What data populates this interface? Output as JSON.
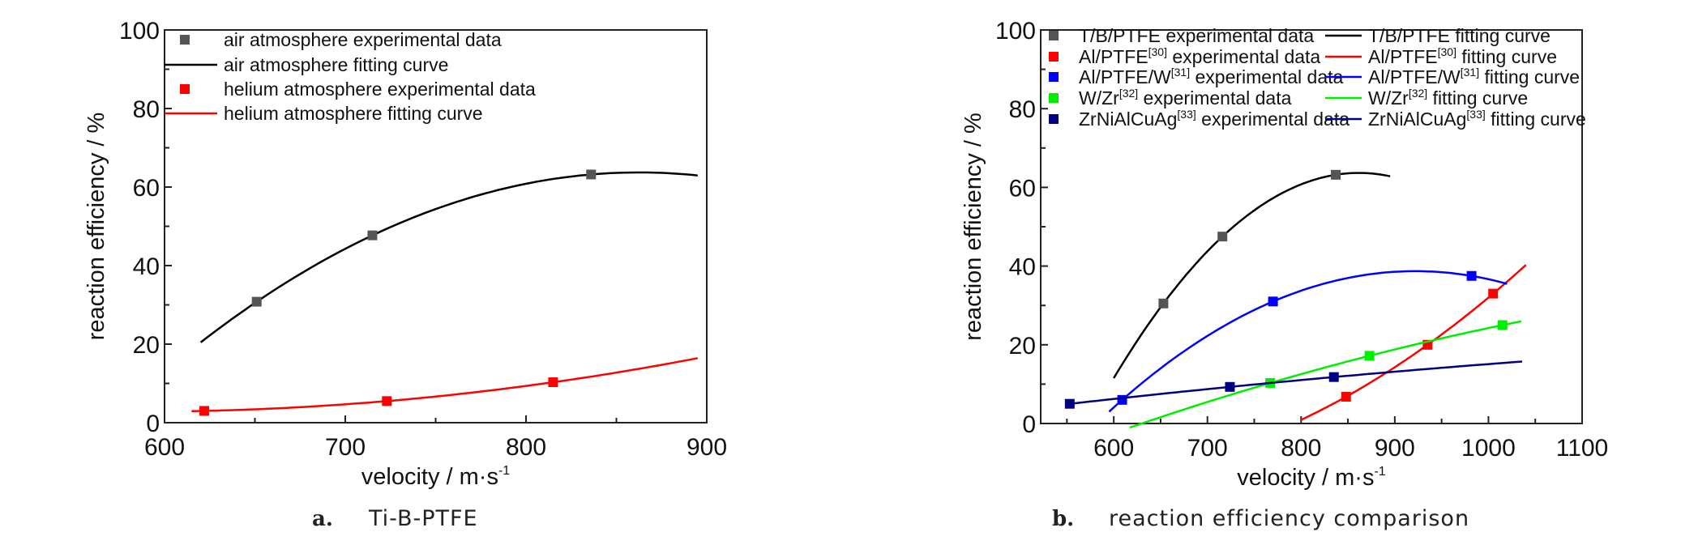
{
  "chart_data": [
    {
      "type": "scatter",
      "panel": "a",
      "caption_letter": "a.",
      "caption": "Ti-B-PTFE",
      "xlabel": "velocity / m·s",
      "xlabel_sup": "-1",
      "ylabel": "reaction efficiency / %",
      "xlim": [
        600,
        900
      ],
      "ylim": [
        0,
        100
      ],
      "xticks": [
        600,
        700,
        800,
        900
      ],
      "yticks": [
        0,
        20,
        40,
        60,
        80,
        100
      ],
      "legend_placement": "top-left",
      "series": [
        {
          "name": "air atmosphere",
          "color": "#555555",
          "line_color": "#000000",
          "data_label": {
            "pre": "air atmosphere experimental data",
            "sup": "",
            "post": ""
          },
          "fit_label": {
            "pre": "air atmosphere fitting curve",
            "sup": "",
            "post": ""
          },
          "x": [
            651,
            715,
            836
          ],
          "y": [
            30.8,
            47.7,
            63.2
          ],
          "fit_range": [
            620,
            895
          ]
        },
        {
          "name": "helium atmosphere",
          "color": "#ff0000",
          "line_color": "#ff0000",
          "data_label": {
            "pre": "helium atmosphere experimental data",
            "sup": "",
            "post": ""
          },
          "fit_label": {
            "pre": "helium atmosphere fitting curve",
            "sup": "",
            "post": ""
          },
          "x": [
            622,
            723,
            815
          ],
          "y": [
            3.0,
            5.5,
            10.3
          ],
          "fit_range": [
            615,
            895
          ]
        }
      ]
    },
    {
      "type": "scatter",
      "panel": "b",
      "caption_letter": "b.",
      "caption": "reaction efficiency comparison",
      "xlabel": "velocity / m·s",
      "xlabel_sup": "-1",
      "ylabel": "reaction efficiency / %",
      "xlim": [
        522,
        1100
      ],
      "ylim": [
        0,
        100
      ],
      "xticks": [
        600,
        700,
        800,
        900,
        1000,
        1100
      ],
      "yticks": [
        0,
        20,
        40,
        60,
        80,
        100
      ],
      "legend_placement": "top",
      "series": [
        {
          "name": "T/B/PTFE",
          "color": "#555555",
          "line_color": "#000000",
          "data_label": {
            "pre": "T/B/PTFE",
            "sup": "",
            "post": " experimental data"
          },
          "fit_label": {
            "pre": "T/B/PTFE",
            "sup": "",
            "post": " fitting curve"
          },
          "x": [
            653,
            716,
            837
          ],
          "y": [
            30.5,
            47.5,
            63.2
          ],
          "fit_range": [
            600,
            895
          ]
        },
        {
          "name": "Al/PTFE",
          "color": "#ff0000",
          "line_color": "#ff0000",
          "data_label": {
            "pre": "Al/PTFE",
            "sup": "[30]",
            "post": " experimental data"
          },
          "fit_label": {
            "pre": "Al/PTFE",
            "sup": "[30]",
            "post": " fitting curve"
          },
          "x": [
            848,
            935,
            1005
          ],
          "y": [
            6.8,
            20.0,
            33.0
          ],
          "fit_range": [
            800,
            1040
          ]
        },
        {
          "name": "Al/PTFE/W",
          "color": "#0000ff",
          "line_color": "#0000ff",
          "data_label": {
            "pre": "Al/PTFE/W",
            "sup": "[31]",
            "post": " experimental data"
          },
          "fit_label": {
            "pre": "Al/PTFE/W",
            "sup": "[31]",
            "post": " fitting curve"
          },
          "x": [
            609,
            770,
            982
          ],
          "y": [
            6.0,
            31.0,
            37.5
          ],
          "fit_range": [
            595,
            1020
          ]
        },
        {
          "name": "W/Zr",
          "color": "#00ee00",
          "line_color": "#00ee00",
          "data_label": {
            "pre": "W/Zr",
            "sup": "[32]",
            "post": " experimental data"
          },
          "fit_label": {
            "pre": "W/Zr",
            "sup": "[32]",
            "post": " fitting curve"
          },
          "x": [
            767,
            873,
            1015
          ],
          "y": [
            10.3,
            17.2,
            25.0
          ],
          "fit_range": [
            617,
            1035
          ]
        },
        {
          "name": "ZrNiAlCuAg",
          "color": "#000080",
          "line_color": "#000080",
          "data_label": {
            "pre": "ZrNiAlCuAg",
            "sup": "[33]",
            "post": " experimental data"
          },
          "fit_label": {
            "pre": "ZrNiAlCuAg",
            "sup": "[33]",
            "post": " fitting curve"
          },
          "x": [
            553,
            724,
            835
          ],
          "y": [
            5.0,
            9.3,
            11.8
          ],
          "fit_range": [
            551,
            1036
          ]
        }
      ]
    }
  ]
}
